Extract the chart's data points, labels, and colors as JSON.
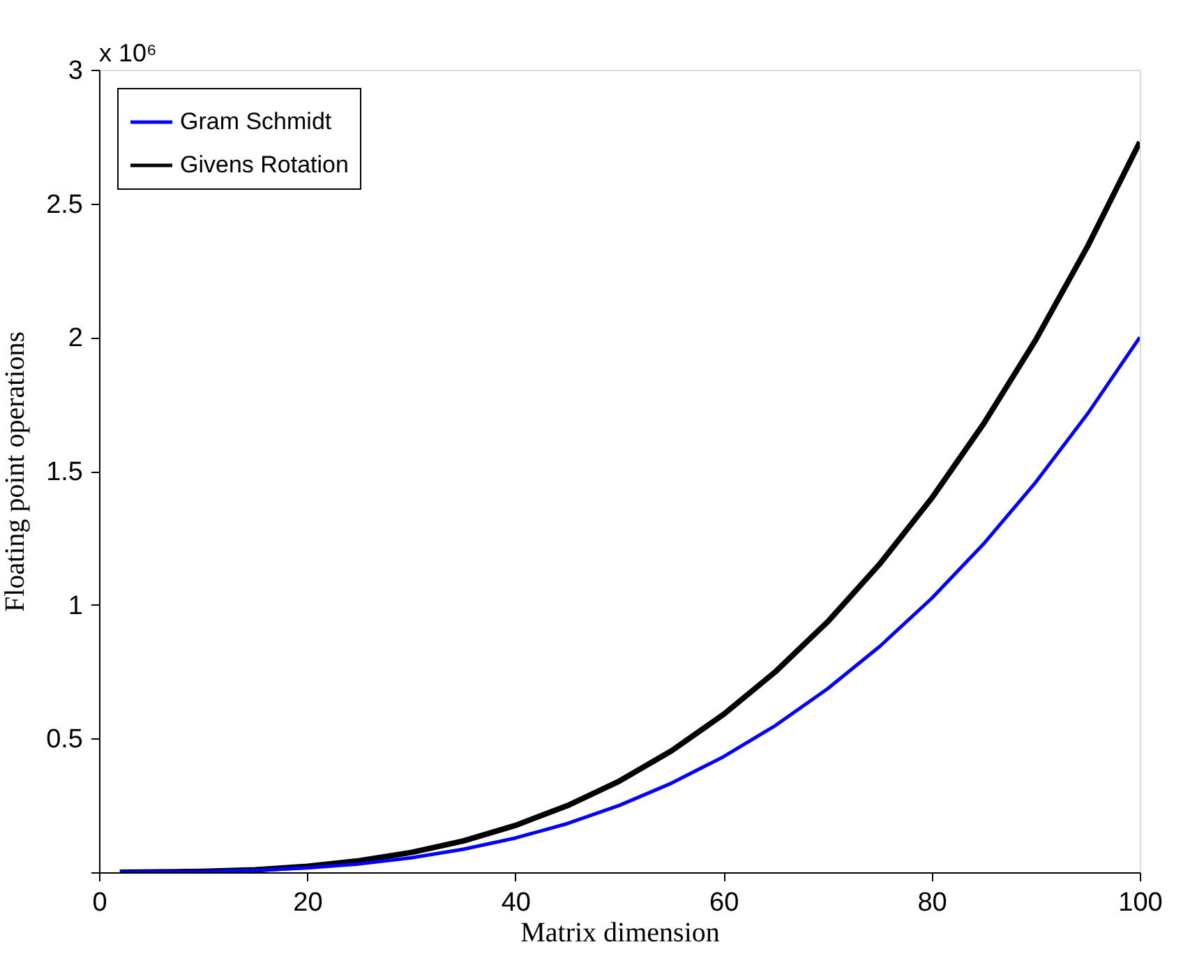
{
  "chart_data": {
    "type": "line",
    "xlabel": "Matrix dimension",
    "ylabel": "Floating point operations",
    "annotations": [
      "x 10⁶"
    ],
    "x": [
      2,
      10,
      15,
      20,
      25,
      30,
      35,
      40,
      45,
      50,
      55,
      60,
      65,
      70,
      75,
      80,
      85,
      90,
      95,
      100
    ],
    "series": [
      {
        "name": "Gram Schmidt",
        "color": "#0000ff",
        "values": [
          0,
          0.002,
          0.007,
          0.016,
          0.031,
          0.054,
          0.086,
          0.128,
          0.182,
          0.25,
          0.333,
          0.432,
          0.549,
          0.686,
          0.844,
          1.024,
          1.228,
          1.458,
          1.715,
          2.0
        ]
      },
      {
        "name": "Givens Rotation",
        "color": "#000000",
        "values": [
          0,
          0.003,
          0.009,
          0.022,
          0.043,
          0.074,
          0.117,
          0.175,
          0.249,
          0.341,
          0.454,
          0.59,
          0.75,
          0.936,
          1.152,
          1.398,
          1.677,
          1.99,
          2.341,
          2.73
        ]
      }
    ],
    "xlim": [
      0,
      100
    ],
    "xticks": [
      0,
      20,
      40,
      60,
      80,
      100
    ],
    "ylim": [
      0,
      3
    ],
    "yticks": [
      {
        "value": 0,
        "label": null
      },
      0.5,
      1,
      1.5,
      2,
      2.5,
      3
    ],
    "grid": false,
    "legend": "top left",
    "marker": "none",
    "line_style": "solid"
  }
}
